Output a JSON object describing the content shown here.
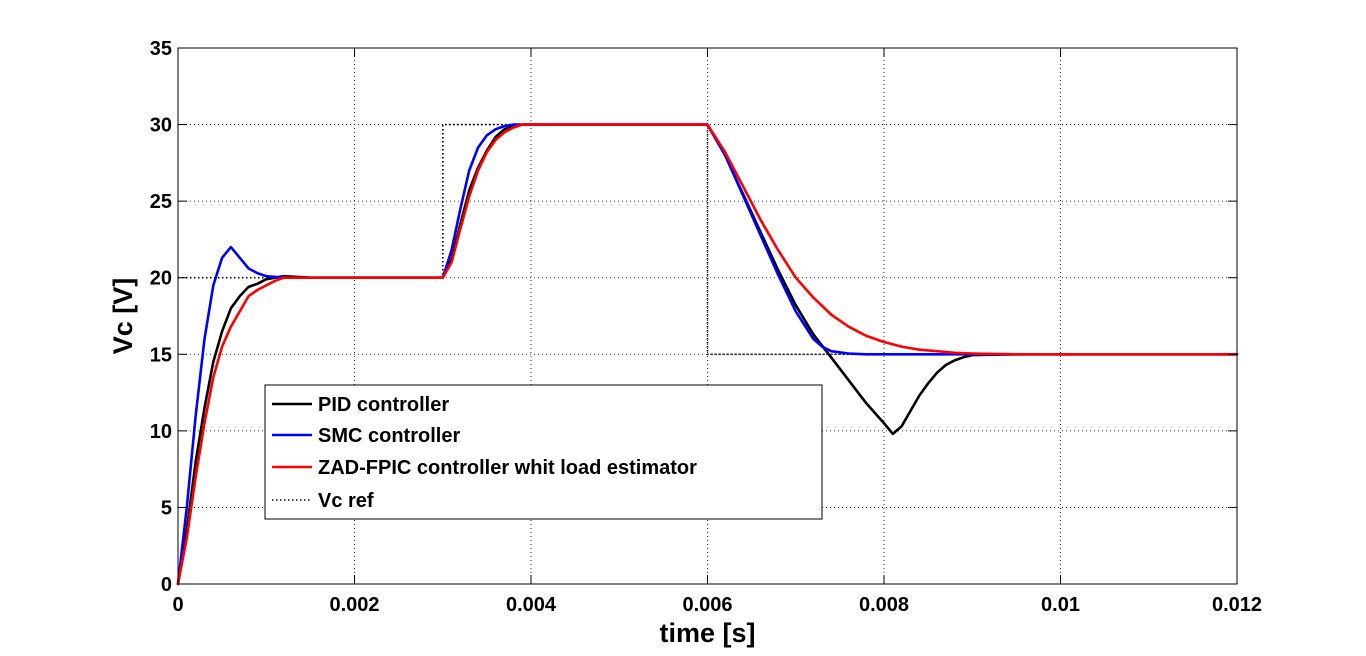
{
  "chart_data": {
    "type": "line",
    "xlabel": "time [s]",
    "ylabel": "Vc [V]",
    "xlim": [
      0,
      0.012
    ],
    "ylim": [
      0,
      35
    ],
    "x_ticks": [
      0,
      0.002,
      0.004,
      0.006,
      0.008,
      0.01,
      0.012
    ],
    "x_tick_labels": [
      "0",
      "0.002",
      "0.004",
      "0.006",
      "0.008",
      "0.01",
      "0.012"
    ],
    "y_ticks": [
      0,
      5,
      10,
      15,
      20,
      25,
      30,
      35
    ],
    "y_tick_labels": [
      "0",
      "5",
      "10",
      "15",
      "20",
      "25",
      "30",
      "35"
    ],
    "grid": true,
    "legend_position": "lower-left",
    "series": [
      {
        "name": "PID controller",
        "color": "#000000",
        "style": "solid",
        "x": [
          0,
          0.0001,
          0.0002,
          0.0003,
          0.0004,
          0.0005,
          0.0006,
          0.0007,
          0.0008,
          0.0009,
          0.001,
          0.0012,
          0.0015,
          0.002,
          0.0025,
          0.003,
          0.0031,
          0.0032,
          0.0033,
          0.0034,
          0.0035,
          0.0036,
          0.0037,
          0.0038,
          0.0039,
          0.004,
          0.0045,
          0.005,
          0.0055,
          0.006,
          0.0062,
          0.0064,
          0.0066,
          0.0068,
          0.007,
          0.0072,
          0.0074,
          0.0076,
          0.0078,
          0.008,
          0.0081,
          0.0082,
          0.0083,
          0.0084,
          0.0085,
          0.0086,
          0.0087,
          0.0088,
          0.0089,
          0.009,
          0.0095,
          0.01,
          0.011,
          0.012
        ],
        "y": [
          0,
          3.5,
          8,
          11.5,
          14.5,
          16.5,
          18,
          18.8,
          19.4,
          19.6,
          19.9,
          20.1,
          20,
          20,
          20,
          20,
          21.2,
          23.5,
          25.7,
          27.2,
          28.3,
          29.2,
          29.7,
          29.9,
          30,
          30,
          30,
          30,
          30,
          30,
          28,
          25.5,
          23,
          20.5,
          18.2,
          16.3,
          14.8,
          13.3,
          11.8,
          10.5,
          9.8,
          10.3,
          11.3,
          12.3,
          13.1,
          13.8,
          14.3,
          14.6,
          14.8,
          14.95,
          15,
          15,
          15,
          15
        ]
      },
      {
        "name": "SMC controller",
        "color": "#0000ff",
        "style": "solid",
        "x": [
          0,
          0.0001,
          0.0002,
          0.0003,
          0.0004,
          0.0005,
          0.0006,
          0.0007,
          0.0008,
          0.0009,
          0.001,
          0.0012,
          0.0015,
          0.002,
          0.0025,
          0.003,
          0.0031,
          0.0032,
          0.0033,
          0.0034,
          0.0035,
          0.0036,
          0.0037,
          0.0038,
          0.0039,
          0.004,
          0.0045,
          0.005,
          0.0055,
          0.006,
          0.0062,
          0.0064,
          0.0066,
          0.0068,
          0.007,
          0.0072,
          0.0073,
          0.0074,
          0.0076,
          0.0078,
          0.008,
          0.009,
          0.01,
          0.011,
          0.012
        ],
        "y": [
          0,
          5,
          11,
          16,
          19.5,
          21.3,
          22,
          21.3,
          20.6,
          20.3,
          20.1,
          20,
          20,
          20,
          20,
          20,
          21.8,
          24.5,
          27,
          28.5,
          29.3,
          29.7,
          29.9,
          30,
          30,
          30,
          30,
          30,
          30,
          30,
          28,
          25.4,
          22.8,
          20.2,
          17.8,
          16,
          15.5,
          15.2,
          15.05,
          15,
          15,
          15,
          15,
          15,
          15
        ]
      },
      {
        "name": "ZAD-FPIC controller whit load estimator",
        "color": "#ff0000",
        "style": "solid",
        "x": [
          0,
          0.0001,
          0.0002,
          0.0003,
          0.0004,
          0.0005,
          0.0006,
          0.0007,
          0.0008,
          0.0009,
          0.001,
          0.0011,
          0.0012,
          0.0015,
          0.002,
          0.0025,
          0.003,
          0.0031,
          0.0032,
          0.0033,
          0.0034,
          0.0035,
          0.0036,
          0.0037,
          0.0038,
          0.0039,
          0.004,
          0.0045,
          0.005,
          0.0055,
          0.006,
          0.0062,
          0.0064,
          0.0066,
          0.0068,
          0.007,
          0.0072,
          0.0074,
          0.0076,
          0.0078,
          0.008,
          0.0082,
          0.0084,
          0.0086,
          0.0088,
          0.009,
          0.0095,
          0.01,
          0.011,
          0.012
        ],
        "y": [
          0,
          3,
          7,
          10.5,
          13.5,
          15.5,
          16.8,
          17.8,
          18.8,
          19.2,
          19.5,
          19.8,
          20,
          20,
          20,
          20,
          20,
          21,
          23.2,
          25.3,
          27,
          28.2,
          29,
          29.5,
          29.8,
          30,
          30,
          30,
          30,
          30,
          30,
          28.2,
          26,
          23.8,
          21.8,
          20,
          18.7,
          17.6,
          16.8,
          16.2,
          15.8,
          15.5,
          15.3,
          15.2,
          15.1,
          15.05,
          15,
          15,
          15,
          15
        ]
      },
      {
        "name": "Vc ref",
        "color": "#000000",
        "style": "dotted",
        "x": [
          0,
          0.003,
          0.003,
          0.006,
          0.006,
          0.012
        ],
        "y": [
          20,
          20,
          30,
          30,
          15,
          15
        ]
      }
    ]
  }
}
